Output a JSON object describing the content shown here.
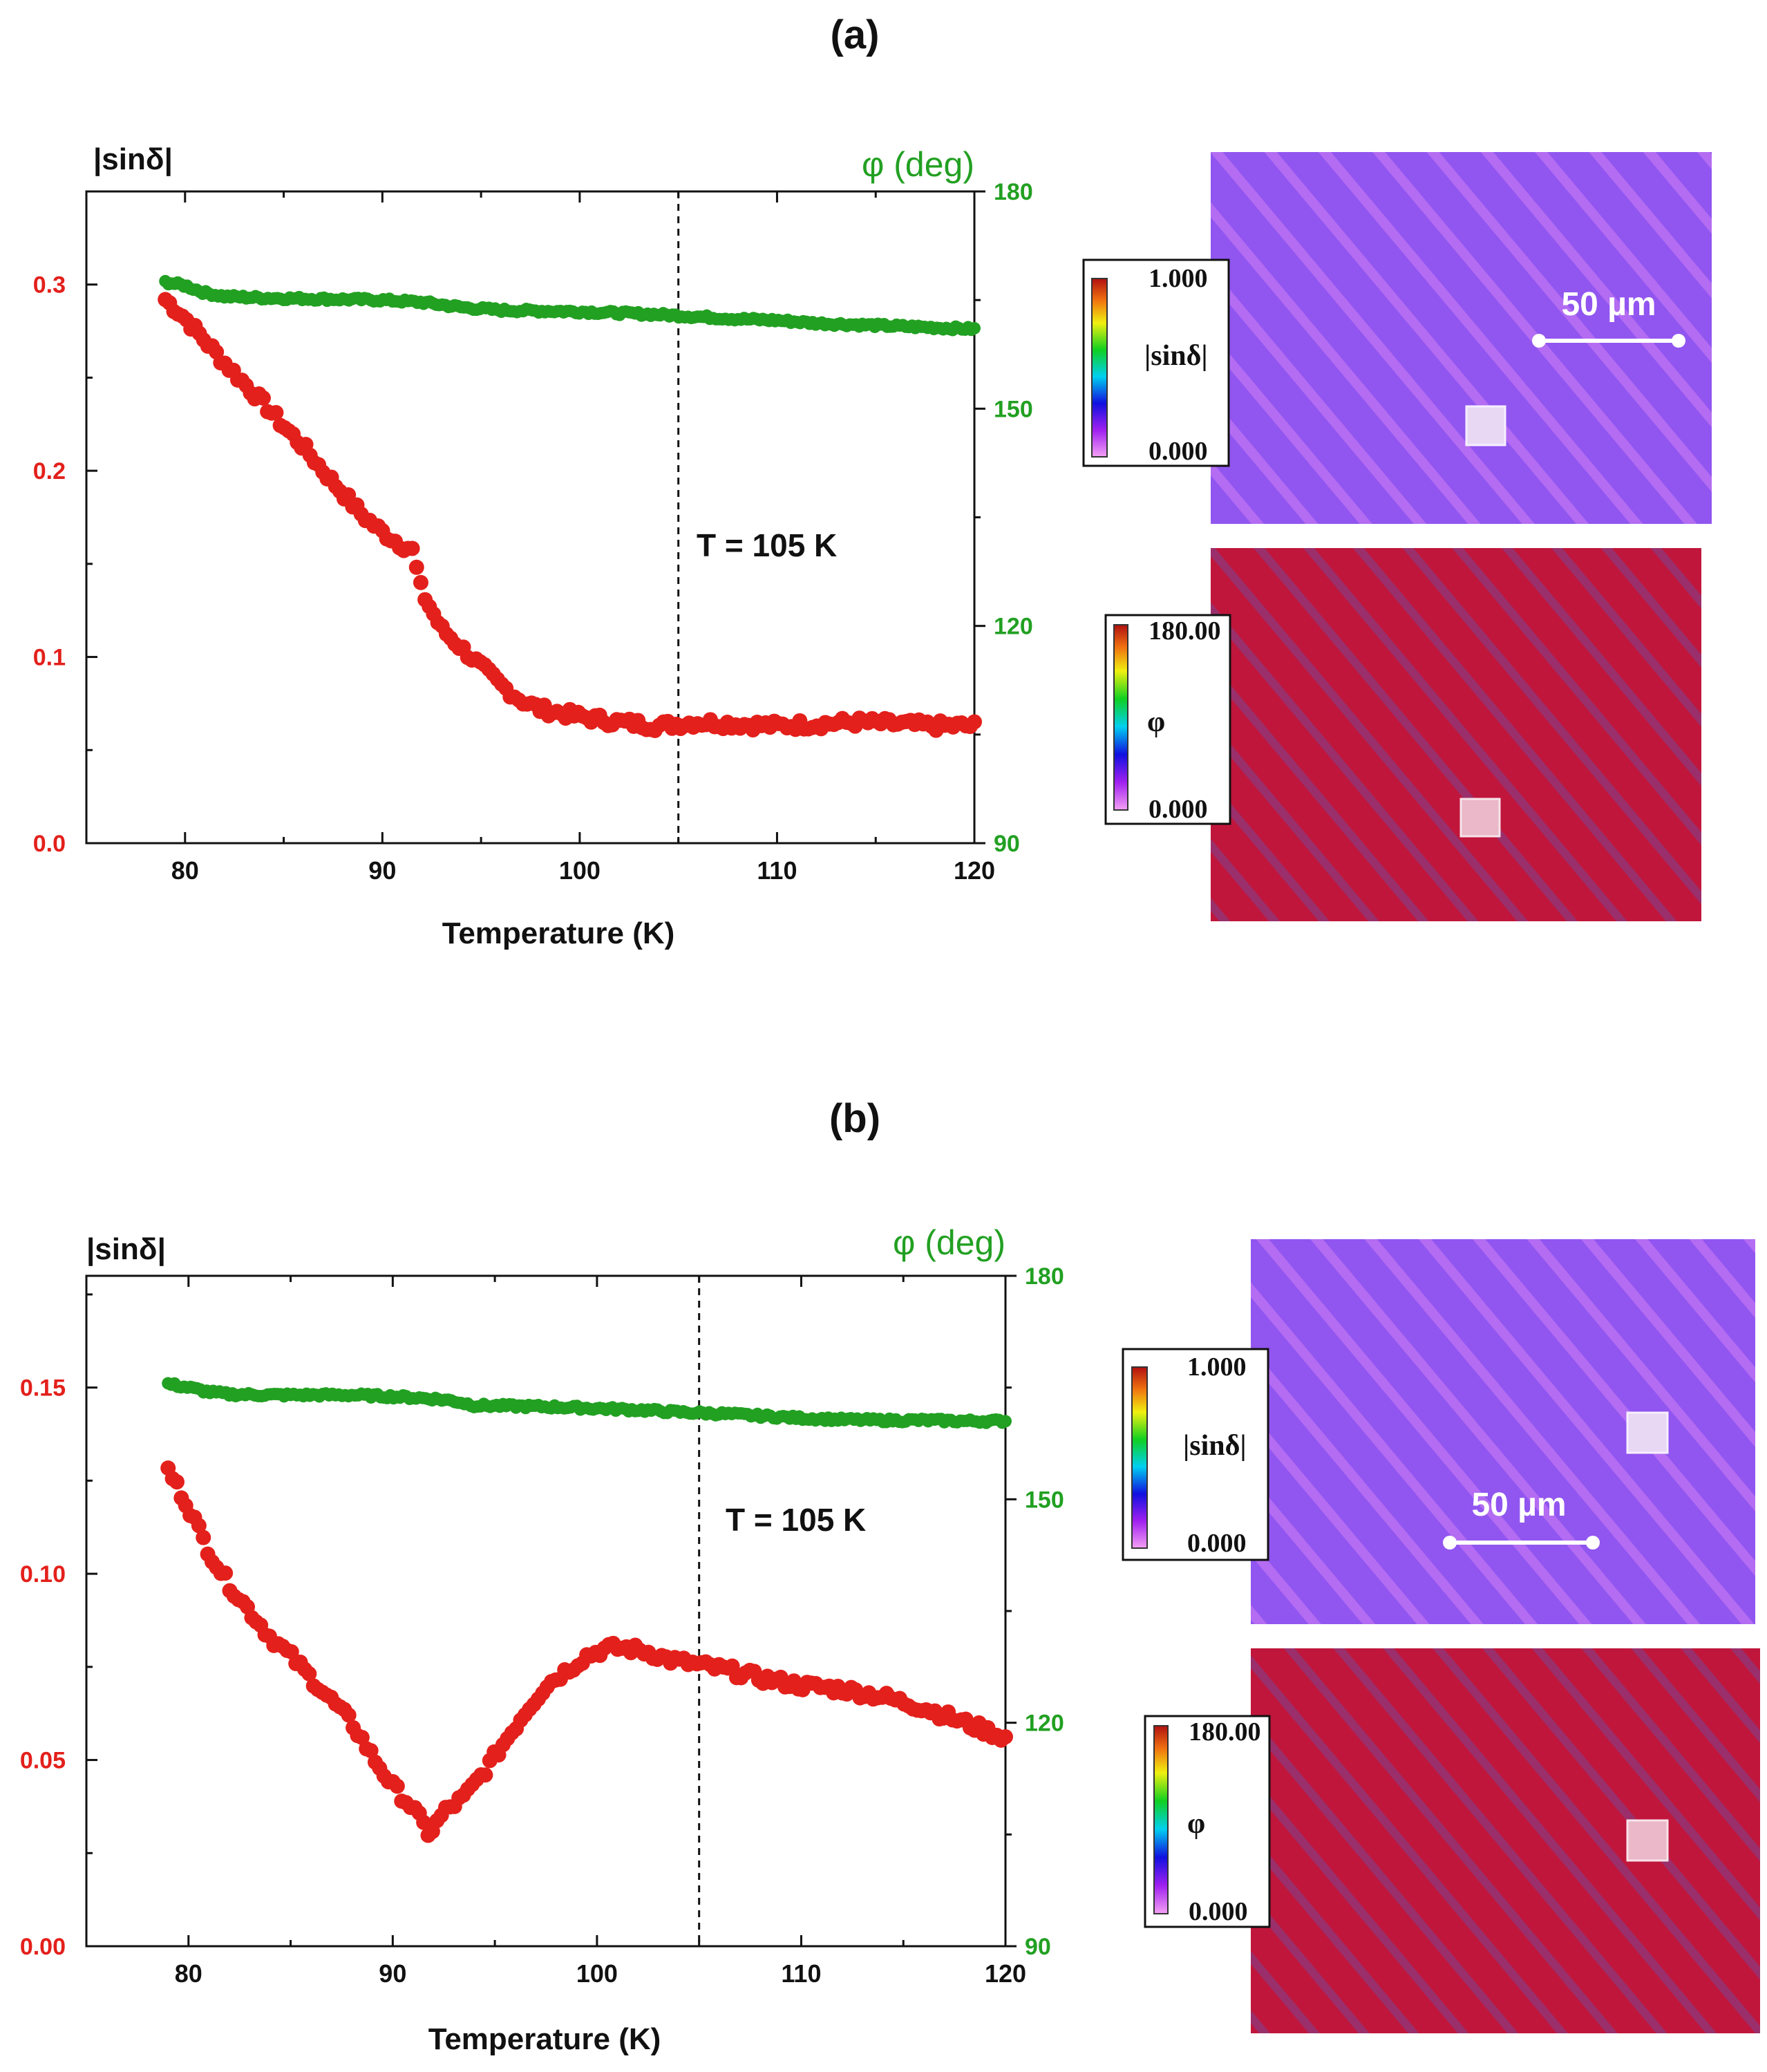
{
  "panels": [
    {
      "label": "(a)",
      "annotation": "T = 105 K",
      "scale_bar": "50 µm",
      "colorbar_sin": {
        "max": "1.000",
        "min": "0.000",
        "label": "|sinδ|"
      },
      "colorbar_phi": {
        "max": "180.00",
        "min": "0.000",
        "label": "φ"
      }
    },
    {
      "label": "(b)",
      "annotation": "T = 105 K",
      "scale_bar": "50 µm",
      "colorbar_sin": {
        "max": "1.000",
        "min": "0.000",
        "label": "|sinδ|"
      },
      "colorbar_phi": {
        "max": "180.00",
        "min": "0.000",
        "label": "φ"
      }
    }
  ],
  "colors": {
    "sin": "#e3201b",
    "phi": "#22a022",
    "map_sin": "#9155f0",
    "map_phi": "#c0163c"
  },
  "chart_data": [
    {
      "type": "scatter",
      "title": "(a)",
      "xlabel": "Temperature (K)",
      "ylabel": "|sinδ|",
      "y2label": "φ (deg)",
      "xlim": [
        75,
        120
      ],
      "ylim": [
        0,
        0.35
      ],
      "y2lim": [
        90,
        180
      ],
      "xticks": [
        "80",
        "90",
        "100",
        "110",
        "120"
      ],
      "yticks": [
        "0.0",
        "0.1",
        "0.2",
        "0.3"
      ],
      "y2ticks": [
        "90",
        "120",
        "150",
        "180"
      ],
      "vline_x": 105,
      "series": [
        {
          "name": "|sinδ|",
          "axis": "left",
          "color": "#e3201b",
          "x": [
            79,
            80,
            81,
            82,
            83,
            84,
            85,
            86,
            87,
            88,
            89,
            90,
            91,
            91.5,
            92,
            93,
            94,
            95,
            96,
            97,
            98,
            99,
            100,
            102,
            104,
            105,
            106,
            108,
            110,
            112,
            114,
            116,
            118,
            120
          ],
          "y": [
            0.292,
            0.282,
            0.27,
            0.258,
            0.247,
            0.236,
            0.224,
            0.213,
            0.2,
            0.188,
            0.176,
            0.167,
            0.16,
            0.158,
            0.135,
            0.115,
            0.105,
            0.095,
            0.085,
            0.077,
            0.072,
            0.07,
            0.068,
            0.065,
            0.063,
            0.064,
            0.065,
            0.064,
            0.063,
            0.064,
            0.065,
            0.064,
            0.063,
            0.063
          ]
        },
        {
          "name": "φ",
          "axis": "right",
          "color": "#22a022",
          "x": [
            79,
            80,
            81,
            82,
            84,
            86,
            88,
            90,
            92,
            94,
            96,
            98,
            100,
            102,
            104,
            106,
            108,
            110,
            112,
            114,
            116,
            118,
            120
          ],
          "y": [
            167.5,
            167,
            166,
            165.5,
            165.3,
            165.2,
            165.1,
            165,
            164.7,
            164,
            163.6,
            163.5,
            163.4,
            163.2,
            163,
            162.7,
            162.4,
            162.2,
            161.8,
            161.6,
            161.4,
            161.2,
            161
          ]
        }
      ]
    },
    {
      "type": "scatter",
      "title": "(b)",
      "xlabel": "Temperature (K)",
      "ylabel": "|sinδ|",
      "y2label": "φ (deg)",
      "xlim": [
        75,
        120
      ],
      "ylim": [
        0,
        0.18
      ],
      "y2lim": [
        90,
        180
      ],
      "xticks": [
        "80",
        "90",
        "100",
        "110",
        "120"
      ],
      "yticks": [
        "0.00",
        "0.05",
        "0.10",
        "0.15"
      ],
      "y2ticks": [
        "90",
        "120",
        "150",
        "180"
      ],
      "vline_x": 105,
      "series": [
        {
          "name": "|sinδ|",
          "axis": "left",
          "color": "#e3201b",
          "x": [
            79,
            80,
            81,
            82,
            83,
            84,
            85,
            86,
            87,
            88,
            89,
            90,
            91,
            91.8,
            92.5,
            93.5,
            94.5,
            95.5,
            96.5,
            97.5,
            98.5,
            99.5,
            100.5,
            101.5,
            102.5,
            103.5,
            104.5,
            105.5,
            106.5,
            108,
            110,
            112,
            114,
            116,
            118,
            120
          ],
          "y": [
            0.128,
            0.118,
            0.106,
            0.097,
            0.09,
            0.083,
            0.078,
            0.072,
            0.066,
            0.06,
            0.051,
            0.043,
            0.037,
            0.03,
            0.036,
            0.04,
            0.047,
            0.055,
            0.063,
            0.07,
            0.074,
            0.078,
            0.08,
            0.08,
            0.079,
            0.077,
            0.076,
            0.075,
            0.074,
            0.072,
            0.07,
            0.069,
            0.067,
            0.064,
            0.06,
            0.056
          ]
        },
        {
          "name": "φ",
          "axis": "right",
          "color": "#22a022",
          "x": [
            79,
            80,
            81,
            82,
            84,
            86,
            88,
            90,
            92,
            93,
            94,
            96,
            98,
            100,
            102,
            104,
            106,
            108,
            110,
            112,
            114,
            116,
            118,
            120
          ],
          "y": [
            165.5,
            165,
            164.4,
            164.1,
            164,
            164,
            164,
            163.8,
            163.5,
            163.2,
            162.6,
            162.5,
            162.4,
            162.2,
            162,
            161.7,
            161.5,
            161.2,
            160.9,
            160.7,
            160.6,
            160.6,
            160.5,
            160.5
          ]
        }
      ]
    }
  ]
}
